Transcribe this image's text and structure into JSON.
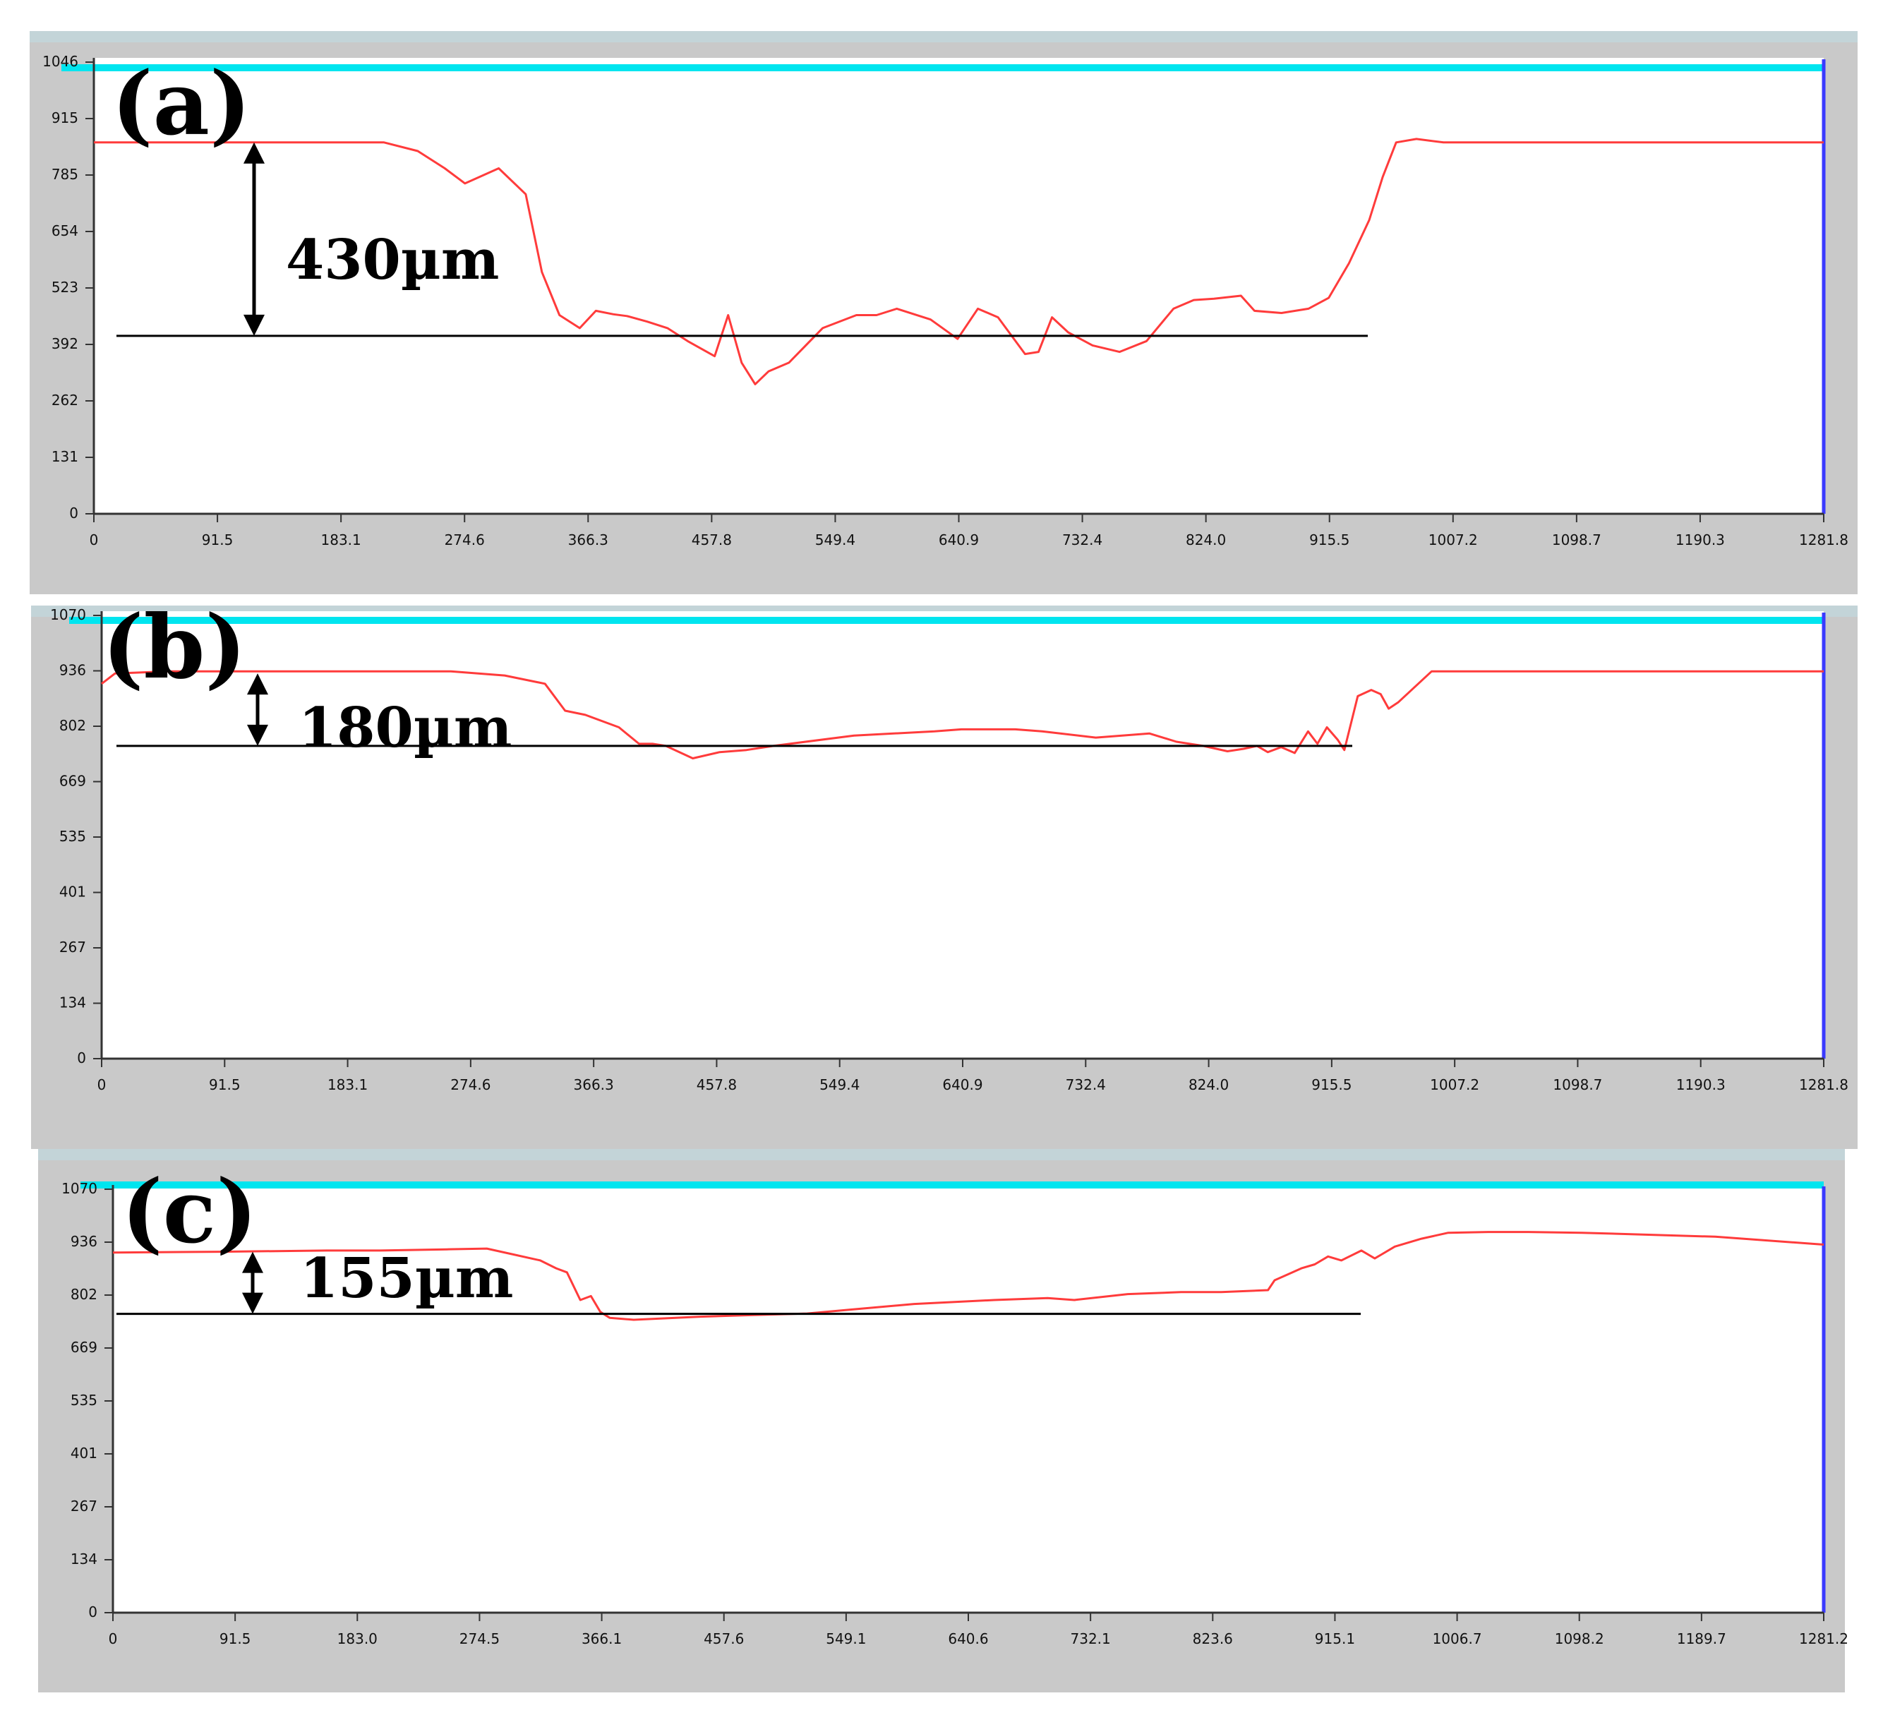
{
  "chart_data": [
    {
      "type": "line",
      "panel_label": "(a)",
      "measurement": "430µm",
      "x_ticks": [
        "0",
        "91.5",
        "183.1",
        "274.6",
        "366.3",
        "457.8",
        "549.4",
        "640.9",
        "732.4",
        "824.0",
        "915.5",
        "1007.2",
        "1098.7",
        "1190.3",
        "1281.8"
      ],
      "y_ticks": [
        "0",
        "131",
        "262",
        "392",
        "523",
        "654",
        "785",
        "915",
        "1046"
      ],
      "xlim": [
        0,
        1281.8
      ],
      "ylim": [
        0,
        1046
      ],
      "reference_level": 412,
      "series": [
        {
          "color": "#ff3b3b",
          "x": [
            0,
            70,
            150,
            215,
            240,
            260,
            275,
            300,
            320,
            332,
            345,
            360,
            372,
            385,
            395,
            410,
            425,
            440,
            460,
            470,
            480,
            490,
            500,
            515,
            540,
            565,
            580,
            595,
            620,
            640,
            655,
            670,
            690,
            700,
            710,
            722,
            740,
            760,
            780,
            800,
            815,
            830,
            850,
            860,
            880,
            900,
            915,
            930,
            945,
            955,
            965,
            980,
            1000,
            1281.8
          ],
          "y": [
            860,
            860,
            860,
            860,
            840,
            800,
            765,
            800,
            740,
            560,
            460,
            430,
            470,
            462,
            458,
            445,
            430,
            400,
            365,
            460,
            350,
            300,
            330,
            350,
            430,
            460,
            460,
            475,
            450,
            405,
            475,
            455,
            370,
            375,
            455,
            420,
            390,
            375,
            400,
            475,
            495,
            498,
            505,
            470,
            465,
            475,
            500,
            580,
            680,
            780,
            860,
            868,
            860,
            860
          ]
        }
      ]
    },
    {
      "type": "line",
      "panel_label": "(b)",
      "measurement": "180µm",
      "x_ticks": [
        "0",
        "91.5",
        "183.1",
        "274.6",
        "366.3",
        "457.8",
        "549.4",
        "640.9",
        "732.4",
        "824.0",
        "915.5",
        "1007.2",
        "1098.7",
        "1190.3",
        "1281.8"
      ],
      "y_ticks": [
        "0",
        "134",
        "267",
        "401",
        "535",
        "669",
        "802",
        "936",
        "1070"
      ],
      "xlim": [
        0,
        1281.8
      ],
      "ylim": [
        0,
        1070
      ],
      "reference_level": 755,
      "series": [
        {
          "color": "#ff3b3b",
          "x": [
            0,
            10,
            50,
            150,
            230,
            260,
            300,
            330,
            345,
            360,
            385,
            400,
            410,
            420,
            440,
            460,
            480,
            500,
            560,
            620,
            640,
            680,
            700,
            740,
            780,
            800,
            820,
            838,
            850,
            860,
            868,
            878,
            888,
            898,
            905,
            912,
            920,
            925,
            935,
            945,
            952,
            958,
            965,
            990,
            1281.8
          ],
          "y": [
            905,
            930,
            935,
            935,
            935,
            935,
            925,
            905,
            840,
            830,
            800,
            760,
            760,
            755,
            725,
            740,
            745,
            755,
            780,
            790,
            795,
            795,
            790,
            775,
            785,
            765,
            755,
            742,
            748,
            755,
            740,
            752,
            738,
            790,
            760,
            800,
            770,
            745,
            875,
            890,
            880,
            845,
            860,
            935,
            935
          ]
        }
      ]
    },
    {
      "type": "line",
      "panel_label": "(c)",
      "measurement": "155µm",
      "x_ticks": [
        "0",
        "91.5",
        "183.0",
        "274.5",
        "366.1",
        "457.6",
        "549.1",
        "640.6",
        "732.1",
        "823.6",
        "915.1",
        "1006.7",
        "1098.2",
        "1189.7",
        "1281.2"
      ],
      "y_ticks": [
        "0",
        "134",
        "267",
        "401",
        "535",
        "669",
        "802",
        "936",
        "1070"
      ],
      "xlim": [
        0,
        1281.2
      ],
      "ylim": [
        0,
        1070
      ],
      "reference_level": 755,
      "series": [
        {
          "color": "#ff3b3b",
          "x": [
            0,
            80,
            160,
            200,
            250,
            280,
            300,
            320,
            332,
            340,
            350,
            358,
            365,
            372,
            390,
            440,
            480,
            520,
            550,
            600,
            660,
            700,
            720,
            760,
            800,
            830,
            865,
            870,
            880,
            890,
            900,
            910,
            920,
            935,
            945,
            950,
            960,
            980,
            1000,
            1030,
            1060,
            1100,
            1150,
            1200,
            1281.2
          ],
          "y": [
            910,
            912,
            915,
            915,
            918,
            920,
            905,
            890,
            870,
            860,
            790,
            800,
            760,
            745,
            740,
            748,
            752,
            756,
            765,
            780,
            790,
            795,
            790,
            805,
            810,
            810,
            815,
            840,
            855,
            870,
            880,
            900,
            890,
            915,
            895,
            905,
            925,
            945,
            960,
            962,
            962,
            960,
            955,
            950,
            930
          ]
        }
      ]
    }
  ]
}
